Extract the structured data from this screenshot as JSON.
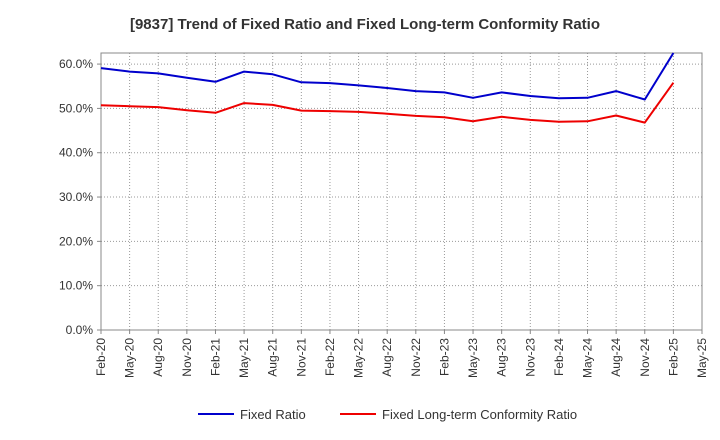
{
  "chart_data": {
    "type": "line",
    "title": "[9837]  Trend of Fixed Ratio and Fixed Long-term Conformity Ratio",
    "xlabel": "",
    "ylabel": "",
    "categories": [
      "Feb-20",
      "May-20",
      "Aug-20",
      "Nov-20",
      "Feb-21",
      "May-21",
      "Aug-21",
      "Nov-21",
      "Feb-22",
      "May-22",
      "Aug-22",
      "Nov-22",
      "Feb-23",
      "May-23",
      "Aug-23",
      "Nov-23",
      "Feb-24",
      "May-24",
      "Aug-24",
      "Nov-24",
      "Feb-25",
      "May-25"
    ],
    "ylim": [
      0,
      62.5
    ],
    "yticks": [
      0,
      10,
      20,
      30,
      40,
      50,
      60
    ],
    "ytick_labels": [
      "0.0%",
      "10.0%",
      "20.0%",
      "30.0%",
      "40.0%",
      "50.0%",
      "60.0%"
    ],
    "grid": true,
    "legend_position": "bottom",
    "series": [
      {
        "name": "Fixed Ratio",
        "color": "#0000cc",
        "values": [
          59.1,
          58.3,
          57.9,
          56.9,
          56.0,
          58.3,
          57.7,
          55.9,
          55.7,
          55.2,
          54.6,
          53.9,
          53.6,
          52.4,
          53.6,
          52.8,
          52.3,
          52.4,
          53.9,
          52.0,
          62.5,
          null
        ]
      },
      {
        "name": "Fixed Long-term Conformity Ratio",
        "color": "#ee0000",
        "values": [
          50.7,
          50.5,
          50.3,
          49.6,
          49.0,
          51.2,
          50.8,
          49.5,
          49.4,
          49.2,
          48.8,
          48.3,
          48.0,
          47.1,
          48.1,
          47.4,
          47.0,
          47.1,
          48.4,
          46.8,
          55.8,
          null
        ]
      }
    ]
  }
}
